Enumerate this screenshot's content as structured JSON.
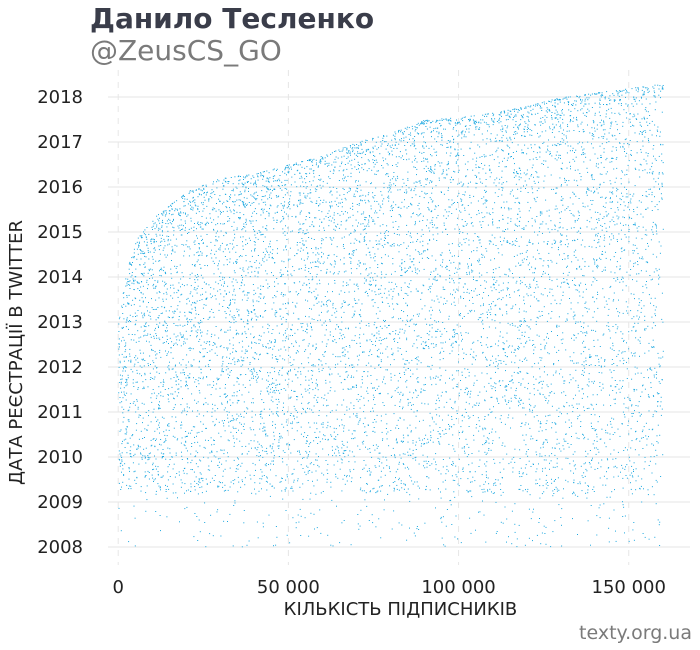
{
  "header": {
    "title": "Данило Тесленко",
    "subtitle": "@ZeusCS_GO"
  },
  "source": "texty.org.ua",
  "colors": {
    "points": "#1aa7e0",
    "grid": "#e6e6e6",
    "text": "#222222"
  },
  "chart_data": {
    "type": "scatter",
    "title": "Данило Тесленко",
    "subtitle": "@ZeusCS_GO",
    "xlabel": "КІЛЬКІСТЬ ПІДПИСНИКІВ",
    "ylabel": "ДАТА РЕЄСТРАЦІЇ В TWITTER",
    "xlim": [
      -3000,
      168000
    ],
    "ylim": [
      2007.6,
      2018.6
    ],
    "x_ticks": [
      0,
      50000,
      100000,
      150000
    ],
    "x_tick_labels": [
      "0",
      "50 000",
      "100 000",
      "150 000"
    ],
    "y_ticks": [
      2008,
      2009,
      2010,
      2011,
      2012,
      2013,
      2014,
      2015,
      2016,
      2017,
      2018
    ],
    "y_tick_labels": [
      "2008",
      "2009",
      "2010",
      "2011",
      "2012",
      "2013",
      "2014",
      "2015",
      "2016",
      "2017",
      "2018"
    ],
    "grid": true,
    "series": [
      {
        "x_range": [
          0,
          160000
        ],
        "upper_envelope": [
          {
            "x": 0,
            "y": 2013.0
          },
          {
            "x": 2000,
            "y": 2014.0
          },
          {
            "x": 5000,
            "y": 2014.8
          },
          {
            "x": 10000,
            "y": 2015.3
          },
          {
            "x": 20000,
            "y": 2015.9
          },
          {
            "x": 30000,
            "y": 2016.2
          },
          {
            "x": 40000,
            "y": 2016.3
          },
          {
            "x": 50000,
            "y": 2016.5
          },
          {
            "x": 60000,
            "y": 2016.7
          },
          {
            "x": 70000,
            "y": 2017.0
          },
          {
            "x": 80000,
            "y": 2017.2
          },
          {
            "x": 90000,
            "y": 2017.5
          },
          {
            "x": 100000,
            "y": 2017.55
          },
          {
            "x": 110000,
            "y": 2017.65
          },
          {
            "x": 120000,
            "y": 2017.8
          },
          {
            "x": 130000,
            "y": 2018.0
          },
          {
            "x": 140000,
            "y": 2018.1
          },
          {
            "x": 150000,
            "y": 2018.2
          },
          {
            "x": 160000,
            "y": 2018.3
          }
        ],
        "dense_floor": 2009.2,
        "sparse_floor": 2008.0
      }
    ]
  }
}
